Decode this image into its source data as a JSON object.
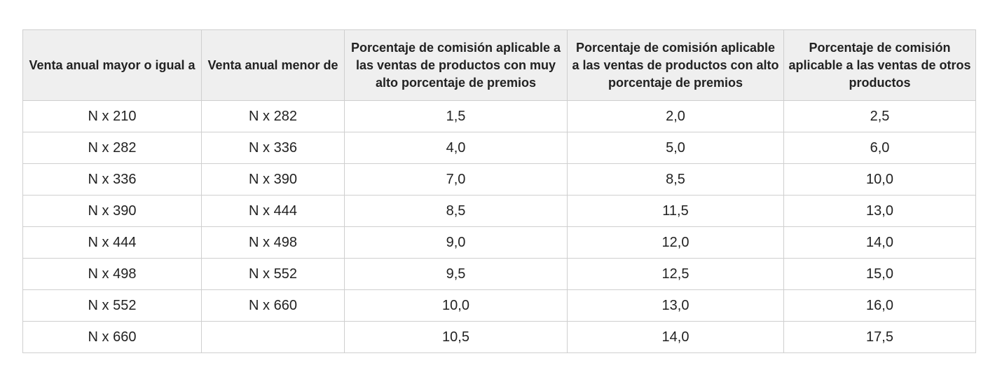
{
  "table": {
    "headers": [
      "Venta anual mayor o igual a",
      "Venta anual menor de",
      "Porcentaje de comisión aplicable a las ventas de productos con muy alto porcentaje de premios",
      "Porcentaje de comisión aplicable a las ventas de productos con alto porcentaje de premios",
      "Porcentaje de comisión aplicable a las ventas de otros productos"
    ],
    "rows": [
      [
        "N x 210",
        "N x 282",
        "1,5",
        "2,0",
        "2,5"
      ],
      [
        "N x 282",
        "N x 336",
        "4,0",
        "5,0",
        "6,0"
      ],
      [
        "N x 336",
        "N x 390",
        "7,0",
        "8,5",
        "10,0"
      ],
      [
        "N x 390",
        "N x 444",
        "8,5",
        "11,5",
        "13,0"
      ],
      [
        "N x 444",
        "N x 498",
        "9,0",
        "12,0",
        "14,0"
      ],
      [
        "N x 498",
        "N x 552",
        "9,5",
        "12,5",
        "15,0"
      ],
      [
        "N x 552",
        "N x 660",
        "10,0",
        "13,0",
        "16,0"
      ],
      [
        "N x 660",
        "",
        "10,5",
        "14,0",
        "17,5"
      ]
    ]
  }
}
